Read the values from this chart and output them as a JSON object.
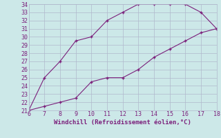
{
  "upper_x": [
    6,
    7,
    8,
    9,
    10,
    11,
    12,
    13,
    14,
    15,
    16,
    17,
    18
  ],
  "upper_y": [
    21,
    25,
    27,
    29.5,
    30,
    32,
    33,
    34,
    34,
    34,
    34,
    33,
    31
  ],
  "lower_x": [
    6,
    7,
    8,
    9,
    10,
    11,
    12,
    13,
    14,
    15,
    16,
    17,
    18
  ],
  "lower_y": [
    21,
    21.5,
    22,
    22.5,
    24.5,
    25,
    25,
    26,
    27.5,
    28.5,
    29.5,
    30.5,
    31
  ],
  "line_color": "#7B1F7B",
  "marker": "+",
  "xlabel": "Windchill (Refroidissement éolien,°C)",
  "xlim": [
    6,
    18
  ],
  "ylim": [
    21,
    34
  ],
  "xticks": [
    6,
    7,
    8,
    9,
    10,
    11,
    12,
    13,
    14,
    15,
    16,
    17,
    18
  ],
  "yticks": [
    21,
    22,
    23,
    24,
    25,
    26,
    27,
    28,
    29,
    30,
    31,
    32,
    33,
    34
  ],
  "bg_color": "#cce8e8",
  "grid_color": "#b0b8cc",
  "label_color": "#7B1F7B",
  "xlabel_fontsize": 6.5,
  "tick_fontsize": 6.0
}
